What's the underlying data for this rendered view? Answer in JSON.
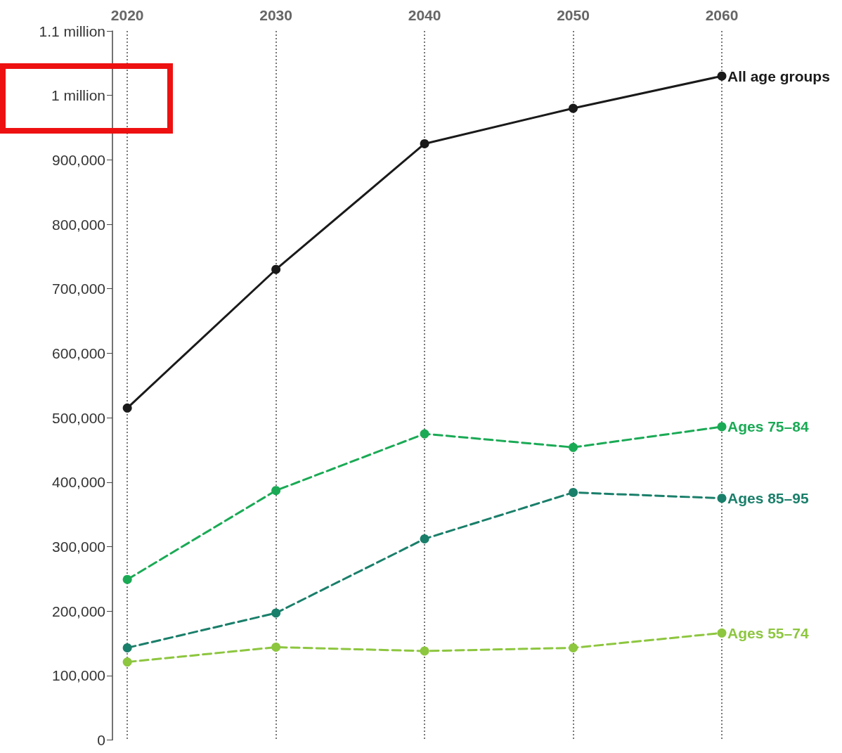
{
  "chart_data": {
    "type": "line",
    "x": [
      2020,
      2030,
      2040,
      2050,
      2060
    ],
    "xlim": [
      2019,
      2060
    ],
    "xticks": [
      2020,
      2030,
      2040,
      2050,
      2060
    ],
    "ylim": [
      0,
      1100000
    ],
    "yticks": [
      0,
      {
        "value": 100000,
        "label": "100,000"
      },
      {
        "value": 200000,
        "label": "200,000"
      },
      {
        "value": 300000,
        "label": "300,000"
      },
      {
        "value": 400000,
        "label": "400,000"
      },
      {
        "value": 500000,
        "label": "500,000"
      },
      {
        "value": 600000,
        "label": "600,000"
      },
      {
        "value": 700000,
        "label": "700,000"
      },
      {
        "value": 800000,
        "label": "800,000"
      },
      {
        "value": 900000,
        "label": "900,000"
      },
      {
        "value": 1000000,
        "label": "1 million"
      },
      {
        "value": 1100000,
        "label": "1.1 million"
      }
    ],
    "grid": "x",
    "marker": "circle",
    "legend": false,
    "series": [
      {
        "name": "All age groups",
        "color": "#1a1a1a",
        "line_style": "solid",
        "values": [
          515000,
          730000,
          925000,
          980000,
          1030000
        ]
      },
      {
        "name": "Ages 75–84",
        "color": "#1aaa55",
        "line_style": "dashed",
        "values": [
          249000,
          387000,
          475000,
          454000,
          486000
        ]
      },
      {
        "name": "Ages 85–95",
        "color": "#1a7f6a",
        "line_style": "dashed",
        "values": [
          143000,
          197000,
          312000,
          384000,
          375000
        ]
      },
      {
        "name": "Ages 55–74",
        "color": "#8dc63f",
        "line_style": "dashed",
        "values": [
          121000,
          144000,
          138000,
          143000,
          166000
        ]
      }
    ]
  }
}
